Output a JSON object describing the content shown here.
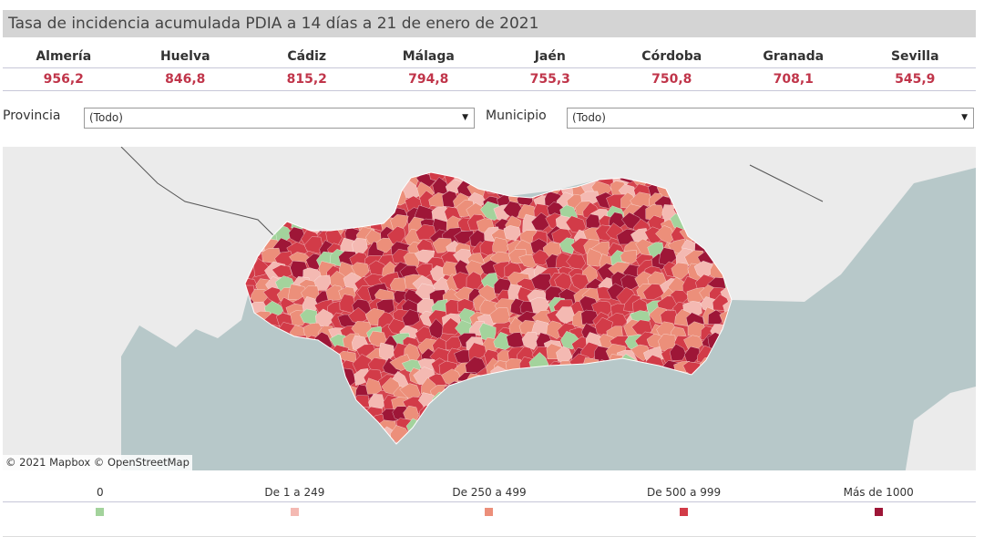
{
  "header": {
    "title": "Tasa de incidencia acumulada PDIA a 14 días a 21 de enero de 2021"
  },
  "provinces": [
    {
      "name": "Almería",
      "value": "956,2"
    },
    {
      "name": "Huelva",
      "value": "846,8"
    },
    {
      "name": "Cádiz",
      "value": "815,2"
    },
    {
      "name": "Málaga",
      "value": "794,8"
    },
    {
      "name": "Jaén",
      "value": "755,3"
    },
    {
      "name": "Córdoba",
      "value": "750,8"
    },
    {
      "name": "Granada",
      "value": "708,1"
    },
    {
      "name": "Sevilla",
      "value": "545,9"
    }
  ],
  "filters": {
    "provincia": {
      "label": "Provincia",
      "value": "(Todo)"
    },
    "municipio": {
      "label": "Municipio",
      "value": "(Todo)"
    }
  },
  "map": {
    "attribution": "© 2021 Mapbox © OpenStreetMap"
  },
  "legend": [
    {
      "label": "0",
      "color": "#a3d39c"
    },
    {
      "label": "De 1 a 249",
      "color": "#f4b9b2"
    },
    {
      "label": "De 250 a 499",
      "color": "#ec8f7a"
    },
    {
      "label": "De 500 a 999",
      "color": "#d23b48"
    },
    {
      "label": "Más de 1000",
      "color": "#9e1637"
    }
  ]
}
